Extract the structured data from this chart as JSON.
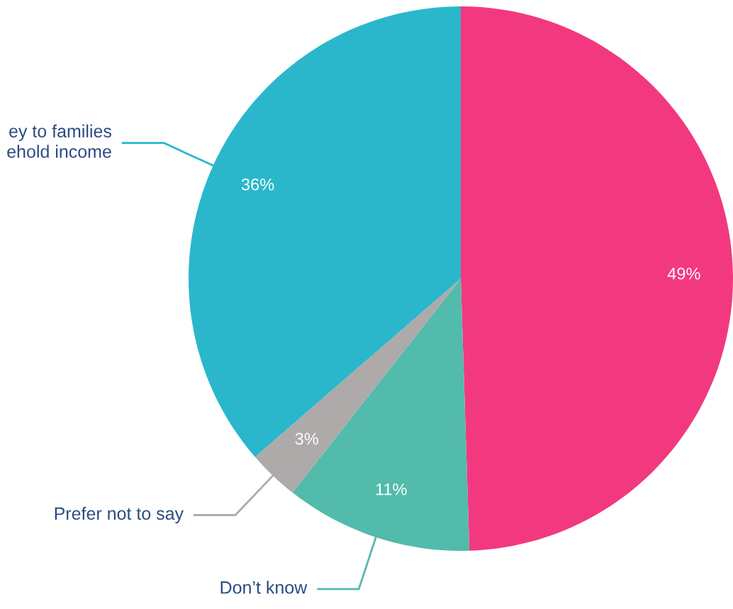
{
  "chart_data": {
    "type": "pie",
    "categories": [
      null,
      "Don’t know",
      "Prefer not to say",
      "ey to families\nehold income"
    ],
    "values": [
      49,
      11,
      3,
      36
    ],
    "value_labels": [
      "49%",
      "11%",
      "3%",
      "36%"
    ],
    "colors": [
      "#f2397f",
      "#52bbab",
      "#aeaaa9",
      "#2ab7cc"
    ]
  }
}
